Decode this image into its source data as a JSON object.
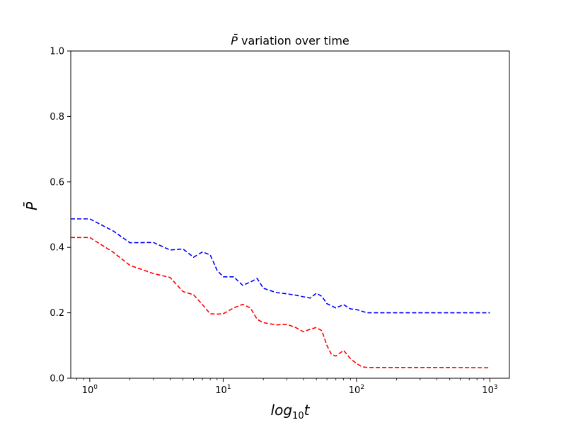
{
  "chart_data": {
    "type": "line",
    "title_symbol": "P̄",
    "title_text": " variation over time",
    "xlabel_main": "log",
    "xlabel_sub": "10",
    "xlabel_var": "t",
    "ylabel": "P̄",
    "x_scale": "log",
    "xlim": [
      0.72,
      1400
    ],
    "ylim": [
      0,
      1.0
    ],
    "x_ticks": [
      {
        "value": 1,
        "base": "10",
        "exp": "0"
      },
      {
        "value": 10,
        "base": "10",
        "exp": "1"
      },
      {
        "value": 100,
        "base": "10",
        "exp": "2"
      },
      {
        "value": 1000,
        "base": "10",
        "exp": "3"
      }
    ],
    "y_ticks": [
      "0.0",
      "0.2",
      "0.4",
      "0.6",
      "0.8",
      "1.0"
    ],
    "grid": false,
    "series": [
      {
        "color": "#0000ff",
        "line_style": "dashed",
        "x": [
          0.72,
          1,
          1.5,
          2,
          3,
          4,
          5,
          6,
          7,
          8,
          9,
          10,
          12,
          14,
          16,
          18,
          20,
          25,
          30,
          35,
          40,
          45,
          50,
          55,
          60,
          70,
          80,
          90,
          100,
          120,
          200,
          300,
          500,
          1000
        ],
        "y": [
          0.487,
          0.487,
          0.45,
          0.414,
          0.415,
          0.392,
          0.395,
          0.37,
          0.386,
          0.377,
          0.33,
          0.31,
          0.31,
          0.284,
          0.294,
          0.305,
          0.275,
          0.262,
          0.258,
          0.254,
          0.249,
          0.245,
          0.26,
          0.25,
          0.228,
          0.215,
          0.225,
          0.212,
          0.21,
          0.2,
          0.2,
          0.2,
          0.2,
          0.2
        ]
      },
      {
        "color": "#ff0000",
        "line_style": "dashed",
        "x": [
          0.72,
          1,
          1.5,
          2,
          3,
          4,
          5,
          6,
          7,
          8,
          9,
          10,
          12,
          14,
          16,
          18,
          20,
          25,
          30,
          35,
          40,
          45,
          50,
          55,
          60,
          65,
          70,
          80,
          90,
          100,
          110,
          120,
          200,
          300,
          500,
          1000
        ],
        "y": [
          0.43,
          0.43,
          0.385,
          0.345,
          0.32,
          0.308,
          0.265,
          0.255,
          0.225,
          0.197,
          0.196,
          0.197,
          0.215,
          0.226,
          0.215,
          0.18,
          0.17,
          0.163,
          0.165,
          0.155,
          0.142,
          0.15,
          0.155,
          0.145,
          0.1,
          0.072,
          0.068,
          0.085,
          0.06,
          0.045,
          0.035,
          0.033,
          0.033,
          0.033,
          0.033,
          0.032
        ]
      }
    ]
  }
}
